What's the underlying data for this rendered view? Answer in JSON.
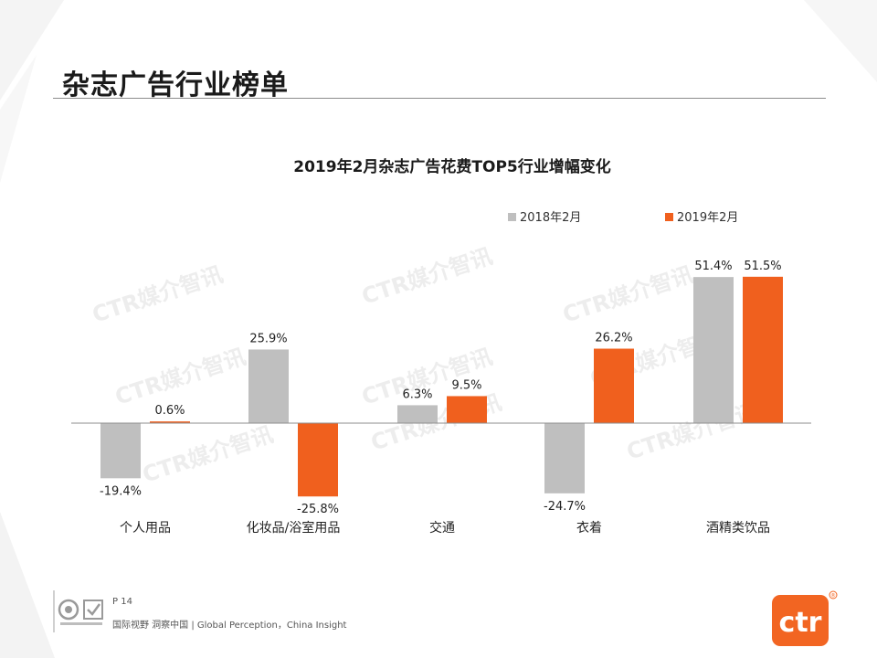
{
  "page": {
    "title": "杂志广告行业榜单",
    "page_number": "P 14",
    "tagline": "国际视野 洞察中国 | Global Perception，China Insight",
    "watermark": "CTR媒介智讯",
    "logo_text": "ctr",
    "logo_mark": "®"
  },
  "colors": {
    "series_2018": "#bfbfbf",
    "series_2019": "#f0601e",
    "logo": "#f26522"
  },
  "chart_data": {
    "type": "bar",
    "title": "2019年2月杂志广告花费TOP5行业增幅变化",
    "categories": [
      "个人用品",
      "化妆品/浴室用品",
      "交通",
      "衣着",
      "酒精类饮品"
    ],
    "series": [
      {
        "name": "2018年2月",
        "values": [
          -19.4,
          25.9,
          6.3,
          -24.7,
          51.4
        ],
        "labels": [
          "-19.4%",
          "25.9%",
          "6.3%",
          "-24.7%",
          "51.4%"
        ]
      },
      {
        "name": "2019年2月",
        "values": [
          0.6,
          -25.8,
          9.5,
          26.2,
          51.5
        ],
        "labels": [
          "0.6%",
          "-25.8%",
          "9.5%",
          "26.2%",
          "51.5%"
        ]
      }
    ],
    "unit": "%",
    "ylim": [
      -30,
      55
    ],
    "grid": false,
    "legend": "top-right"
  }
}
